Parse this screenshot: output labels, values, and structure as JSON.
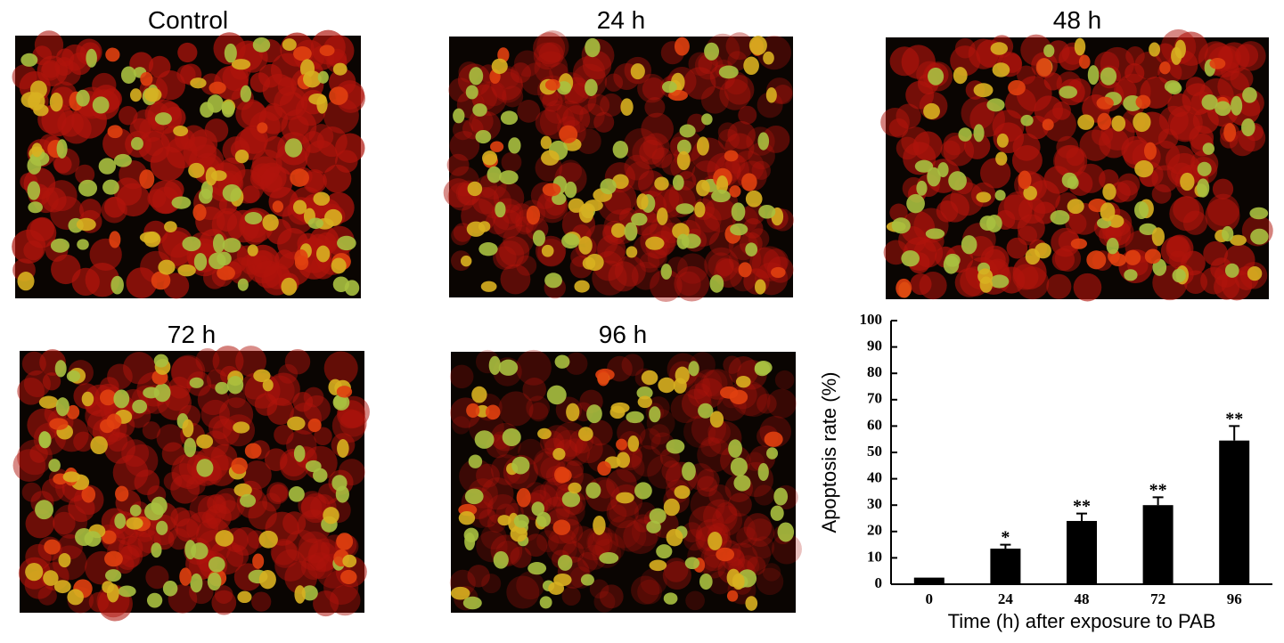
{
  "panels": [
    {
      "title": "Control"
    },
    {
      "title": "24 h"
    },
    {
      "title": "48 h"
    },
    {
      "title": "72 h"
    },
    {
      "title": "96 h"
    }
  ],
  "chart_data": {
    "type": "bar",
    "categories": [
      "0",
      "24",
      "48",
      "72",
      "96"
    ],
    "values": [
      2.5,
      13.5,
      24,
      30,
      54.5
    ],
    "errors": [
      null,
      1.5,
      2.8,
      3,
      5.5
    ],
    "significance": [
      null,
      "*",
      "**",
      "**",
      "**"
    ],
    "color": "#000000",
    "ylim": [
      0,
      100
    ],
    "yticks": [
      0,
      10,
      20,
      30,
      40,
      50,
      60,
      70,
      80,
      90,
      100
    ],
    "x_label": "Time (h) after exposure to PAB",
    "y_label": "Apoptosis rate (%)"
  }
}
